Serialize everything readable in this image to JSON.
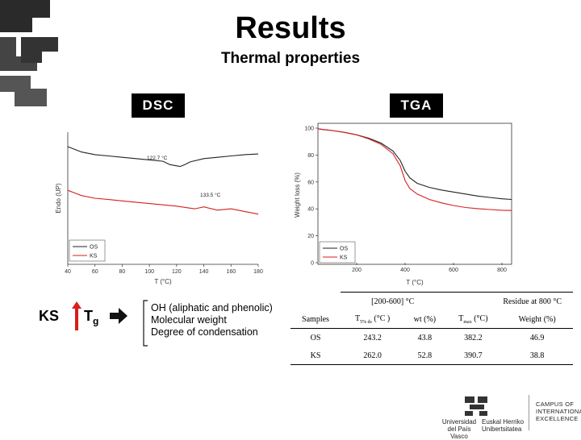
{
  "header": {
    "title": "Results",
    "subtitle": "Thermal properties"
  },
  "tabs": {
    "dsc": "DSC",
    "tga": "TGA"
  },
  "notes": {
    "ks": "KS",
    "tg_main": "T",
    "tg_sub": "g",
    "lines": [
      "OH (aliphatic and phenolic)",
      "Molecular weight",
      "Degree of condensation"
    ]
  },
  "colors": {
    "os": "#222222",
    "ks": "#d81e1e"
  },
  "chart_data": [
    {
      "type": "line",
      "title": "DSC",
      "xlabel": "T (°C)",
      "ylabel": "Endo (UP)",
      "xlim": [
        40,
        180
      ],
      "ylim": [
        0,
        10
      ],
      "x_ticks": [
        "40",
        "60",
        "80",
        "100",
        "120",
        "140",
        "160",
        "180"
      ],
      "legend": [
        "OS",
        "KS"
      ],
      "legend_position": "bottom-left",
      "annotations": [
        "122.7 °C",
        "133.5 °C"
      ],
      "series": [
        {
          "name": "OS",
          "x": [
            40,
            45,
            50,
            60,
            70,
            80,
            90,
            100,
            110,
            115,
            120,
            122.7,
            126,
            130,
            140,
            150,
            160,
            170,
            180
          ],
          "y": [
            8.9,
            8.7,
            8.5,
            8.3,
            8.2,
            8.1,
            8.0,
            7.9,
            7.8,
            7.55,
            7.45,
            7.4,
            7.55,
            7.75,
            8.0,
            8.1,
            8.2,
            8.3,
            8.35
          ]
        },
        {
          "name": "KS",
          "x": [
            40,
            45,
            50,
            60,
            70,
            80,
            90,
            100,
            110,
            120,
            130,
            133.5,
            140,
            150,
            160,
            170,
            180
          ],
          "y": [
            5.6,
            5.4,
            5.2,
            5.0,
            4.9,
            4.8,
            4.7,
            4.6,
            4.5,
            4.4,
            4.25,
            4.2,
            4.35,
            4.1,
            4.2,
            4.0,
            3.8
          ]
        }
      ]
    },
    {
      "type": "line",
      "title": "TGA",
      "xlabel": "T (°C)",
      "ylabel": "Weight loss (%)",
      "xlim": [
        40,
        840
      ],
      "ylim": [
        0,
        100
      ],
      "x_ticks": [
        "200",
        "400",
        "600",
        "800"
      ],
      "y_ticks": [
        "0",
        "20",
        "40",
        "60",
        "80",
        "100"
      ],
      "legend": [
        "OS",
        "KS"
      ],
      "legend_position": "bottom-left",
      "series": [
        {
          "name": "OS",
          "x": [
            40,
            60,
            80,
            100,
            150,
            200,
            250,
            300,
            350,
            380,
            400,
            420,
            450,
            500,
            550,
            600,
            650,
            700,
            750,
            800,
            840
          ],
          "y": [
            99.5,
            99,
            98.6,
            98.2,
            96.8,
            95,
            92.5,
            89,
            83,
            76,
            68,
            63,
            59,
            56,
            54,
            52.5,
            51,
            49.5,
            48.5,
            47.5,
            47
          ]
        },
        {
          "name": "KS",
          "x": [
            40,
            60,
            80,
            100,
            150,
            200,
            250,
            300,
            350,
            380,
            400,
            420,
            450,
            500,
            550,
            600,
            650,
            700,
            750,
            800,
            840
          ],
          "y": [
            99.5,
            99,
            98.6,
            98.2,
            96.8,
            95,
            92,
            88,
            81,
            72,
            61,
            55,
            51,
            47,
            44.5,
            42.5,
            41,
            40.2,
            39.5,
            39,
            38.8
          ]
        }
      ]
    },
    {
      "type": "table",
      "group_headers": [
        "[200-600] °C",
        "Residue at 800 °C"
      ],
      "columns": [
        "Samples",
        "T5% ds (°C )",
        "wt (%)",
        "Tmax (°C)",
        "Weight (%)"
      ],
      "rows": [
        [
          "OS",
          "243.2",
          "43.8",
          "382.2",
          "46.9"
        ],
        [
          "KS",
          "262.0",
          "52.8",
          "390.7",
          "38.8"
        ]
      ]
    }
  ],
  "footer": {
    "university": [
      "Universidad",
      "del País Vasco"
    ],
    "university_basque": [
      "Euskal Herriko",
      "Unibertsitatea"
    ],
    "campus": [
      "CAMPUS OF",
      "INTERNATIONAL",
      "EXCELLENCE"
    ]
  }
}
